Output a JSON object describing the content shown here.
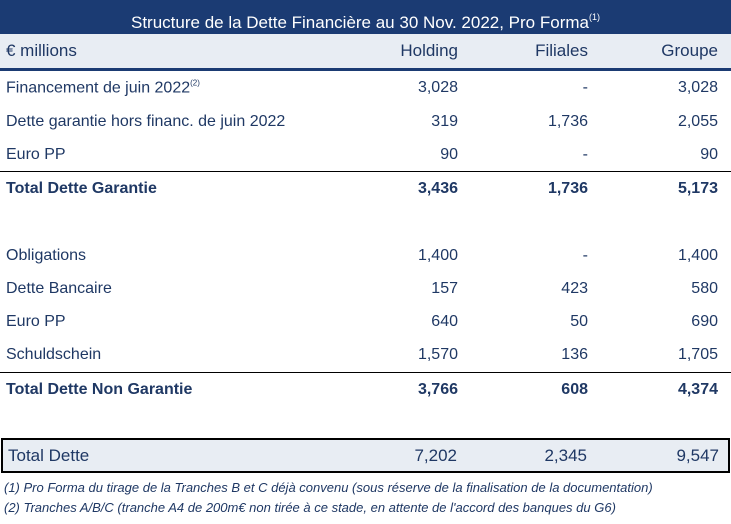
{
  "title": "Structure de la Dette Financière au 30 Nov. 2022, Pro Forma",
  "title_note": "(1)",
  "columns": {
    "label": "€ millions",
    "holding": "Holding",
    "filiales": "Filiales",
    "groupe": "Groupe"
  },
  "rows": [
    {
      "label": "Financement de juin 2022",
      "note": "(2)",
      "holding": "3,028",
      "filiales": "-",
      "groupe": "3,028"
    },
    {
      "label": "Dette garantie hors financ. de juin 2022",
      "holding": "319",
      "filiales": "1,736",
      "groupe": "2,055"
    },
    {
      "label": "Euro PP",
      "holding": "90",
      "filiales": "-",
      "groupe": "90"
    },
    {
      "label": "Total Dette Garantie",
      "holding": "3,436",
      "filiales": "1,736",
      "groupe": "5,173"
    },
    {
      "label": "Obligations",
      "holding": "1,400",
      "filiales": "-",
      "groupe": "1,400"
    },
    {
      "label": "Dette Bancaire",
      "holding": "157",
      "filiales": "423",
      "groupe": "580"
    },
    {
      "label": "Euro PP",
      "holding": "640",
      "filiales": "50",
      "groupe": "690"
    },
    {
      "label": "Schuldschein",
      "holding": "1,570",
      "filiales": "136",
      "groupe": "1,705"
    },
    {
      "label": "Total Dette Non Garantie",
      "holding": "3,766",
      "filiales": "608",
      "groupe": "4,374"
    }
  ],
  "total": {
    "label": "Total Dette",
    "holding": "7,202",
    "filiales": "2,345",
    "groupe": "9,547"
  },
  "footnotes": [
    "(1) Pro Forma du tirage de la Tranches B et C déjà convenu (sous réserve de la finalisation de la documentation)",
    "(2) Tranches A/B/C (tranche A4 de 200m€ non tirée à ce stade, en attente de l'accord des banques du G6)"
  ],
  "colors": {
    "header": "#1b3b73",
    "header_row": "#e8edf3",
    "text": "#1f3864"
  }
}
